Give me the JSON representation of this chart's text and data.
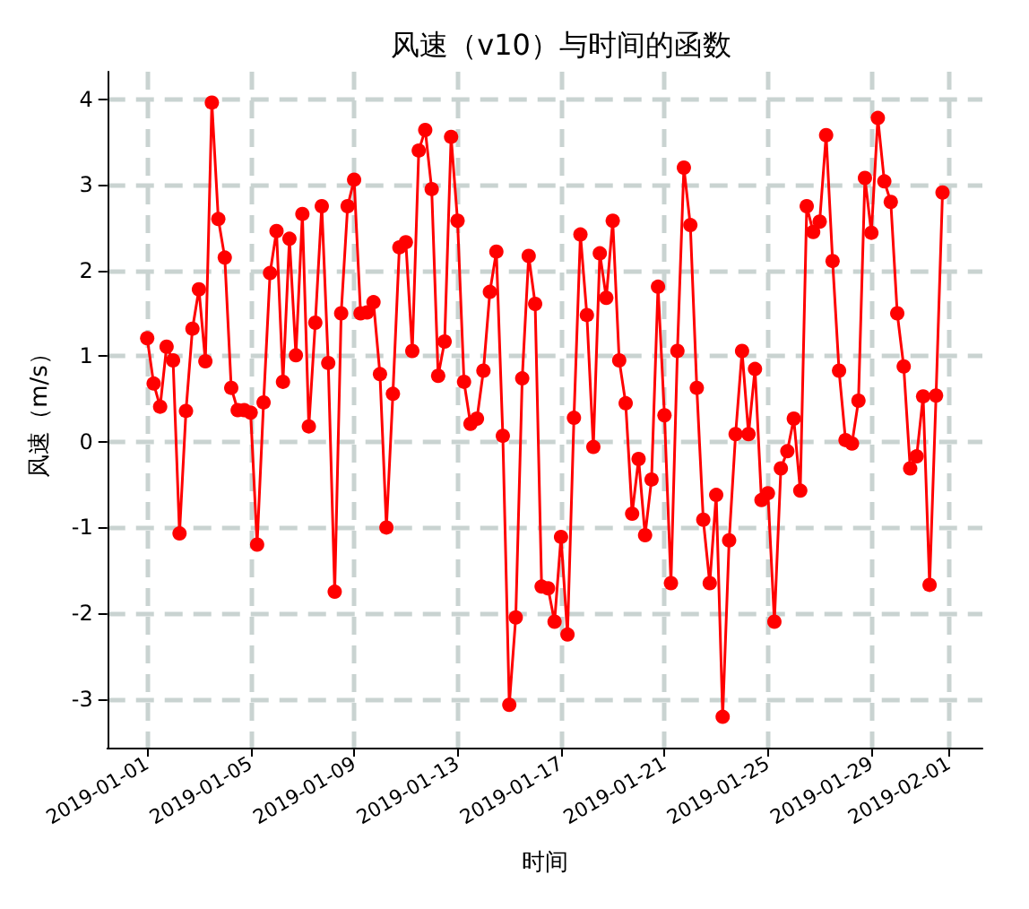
{
  "chart_data": {
    "type": "line",
    "title": "风速（v10）与时间的函数",
    "xlabel": "时间",
    "ylabel": "风速（m/s）",
    "x": [
      "2019-01-01T00:00",
      "2019-01-01T06:00",
      "2019-01-01T12:00",
      "2019-01-01T18:00",
      "2019-01-02T00:00",
      "2019-01-02T06:00",
      "2019-01-02T12:00",
      "2019-01-02T18:00",
      "2019-01-03T00:00",
      "2019-01-03T06:00",
      "2019-01-03T12:00",
      "2019-01-03T18:00",
      "2019-01-04T00:00",
      "2019-01-04T06:00",
      "2019-01-04T12:00",
      "2019-01-04T18:00",
      "2019-01-05T00:00",
      "2019-01-05T06:00",
      "2019-01-05T12:00",
      "2019-01-05T18:00",
      "2019-01-06T00:00",
      "2019-01-06T06:00",
      "2019-01-06T12:00",
      "2019-01-06T18:00",
      "2019-01-07T00:00",
      "2019-01-07T06:00",
      "2019-01-07T12:00",
      "2019-01-07T18:00",
      "2019-01-08T00:00",
      "2019-01-08T06:00",
      "2019-01-08T12:00",
      "2019-01-08T18:00",
      "2019-01-09T00:00",
      "2019-01-09T06:00",
      "2019-01-09T12:00",
      "2019-01-09T18:00",
      "2019-01-10T00:00",
      "2019-01-10T06:00",
      "2019-01-10T12:00",
      "2019-01-10T18:00",
      "2019-01-11T00:00",
      "2019-01-11T06:00",
      "2019-01-11T12:00",
      "2019-01-11T18:00",
      "2019-01-12T00:00",
      "2019-01-12T06:00",
      "2019-01-12T12:00",
      "2019-01-12T18:00",
      "2019-01-13T00:00",
      "2019-01-13T06:00",
      "2019-01-13T12:00",
      "2019-01-13T18:00",
      "2019-01-14T00:00",
      "2019-01-14T06:00",
      "2019-01-14T12:00",
      "2019-01-14T18:00",
      "2019-01-15T00:00",
      "2019-01-15T06:00",
      "2019-01-15T12:00",
      "2019-01-15T18:00",
      "2019-01-16T00:00",
      "2019-01-16T06:00",
      "2019-01-16T12:00",
      "2019-01-16T18:00",
      "2019-01-17T00:00",
      "2019-01-17T06:00",
      "2019-01-17T12:00",
      "2019-01-17T18:00",
      "2019-01-18T00:00",
      "2019-01-18T06:00",
      "2019-01-18T12:00",
      "2019-01-18T18:00",
      "2019-01-19T00:00",
      "2019-01-19T06:00",
      "2019-01-19T12:00",
      "2019-01-19T18:00",
      "2019-01-20T00:00",
      "2019-01-20T06:00",
      "2019-01-20T12:00",
      "2019-01-20T18:00",
      "2019-01-21T00:00",
      "2019-01-21T06:00",
      "2019-01-21T12:00",
      "2019-01-21T18:00",
      "2019-01-22T00:00",
      "2019-01-22T06:00",
      "2019-01-22T12:00",
      "2019-01-22T18:00",
      "2019-01-23T00:00",
      "2019-01-23T06:00",
      "2019-01-23T12:00",
      "2019-01-23T18:00",
      "2019-01-24T00:00",
      "2019-01-24T06:00",
      "2019-01-24T12:00",
      "2019-01-24T18:00",
      "2019-01-25T00:00",
      "2019-01-25T06:00",
      "2019-01-25T12:00",
      "2019-01-25T18:00",
      "2019-01-26T00:00",
      "2019-01-26T06:00",
      "2019-01-26T12:00",
      "2019-01-26T18:00",
      "2019-01-27T00:00",
      "2019-01-27T06:00",
      "2019-01-27T12:00",
      "2019-01-27T18:00",
      "2019-01-28T00:00",
      "2019-01-28T06:00",
      "2019-01-28T12:00",
      "2019-01-28T18:00",
      "2019-01-29T00:00",
      "2019-01-29T06:00",
      "2019-01-29T12:00",
      "2019-01-29T18:00",
      "2019-01-30T00:00",
      "2019-01-30T06:00",
      "2019-01-30T12:00",
      "2019-01-30T18:00",
      "2019-01-31T00:00",
      "2019-01-31T06:00",
      "2019-01-31T12:00",
      "2019-01-31T18:00"
    ],
    "series": [
      {
        "color": "#ff0000",
        "values": [
          1.21,
          0.68,
          0.41,
          1.11,
          0.95,
          -1.07,
          0.36,
          1.32,
          1.78,
          0.94,
          3.96,
          2.6,
          2.15,
          0.63,
          0.37,
          0.37,
          0.34,
          -1.2,
          0.46,
          1.97,
          2.46,
          0.7,
          2.37,
          1.01,
          2.66,
          0.18,
          1.39,
          2.75,
          0.92,
          -1.75,
          1.5,
          2.75,
          3.06,
          1.5,
          1.51,
          1.63,
          0.79,
          -1.0,
          0.56,
          2.27,
          2.33,
          1.06,
          3.4,
          3.64,
          2.95,
          0.77,
          1.17,
          3.56,
          2.58,
          0.7,
          0.21,
          0.27,
          0.83,
          1.75,
          2.22,
          0.07,
          -3.07,
          -2.05,
          0.74,
          2.17,
          1.61,
          -1.69,
          -1.71,
          -2.1,
          -1.11,
          -2.25,
          0.28,
          2.42,
          1.48,
          -0.06,
          2.2,
          1.68,
          2.58,
          0.95,
          0.45,
          -0.84,
          -0.2,
          -1.09,
          -0.44,
          1.81,
          0.31,
          -1.65,
          1.06,
          3.2,
          2.53,
          0.63,
          -0.91,
          -1.65,
          -0.62,
          -3.21,
          -1.15,
          0.09,
          1.06,
          0.09,
          0.85,
          -0.68,
          -0.6,
          -2.1,
          -0.31,
          -0.11,
          0.27,
          -0.57,
          2.75,
          2.45,
          2.57,
          3.58,
          2.11,
          0.83,
          0.02,
          -0.02,
          0.48,
          3.08,
          2.44,
          3.78,
          3.04,
          2.8,
          1.5,
          0.88,
          -0.31,
          -0.17,
          0.53,
          -1.67,
          0.54,
          2.91
        ]
      }
    ],
    "xlim": [
      "2018-12-30T11:00",
      "2019-02-02T07:00"
    ],
    "xticks": [
      "2019-01-01",
      "2019-01-05",
      "2019-01-09",
      "2019-01-13",
      "2019-01-17",
      "2019-01-21",
      "2019-01-25",
      "2019-01-29",
      "2019-02-01"
    ],
    "ylim": [
      -3.57,
      4.32
    ],
    "yticks": [
      -3,
      -2,
      -1,
      0,
      1,
      2,
      3,
      4
    ],
    "grid": true,
    "marker": "circle",
    "line_style": "solid"
  }
}
